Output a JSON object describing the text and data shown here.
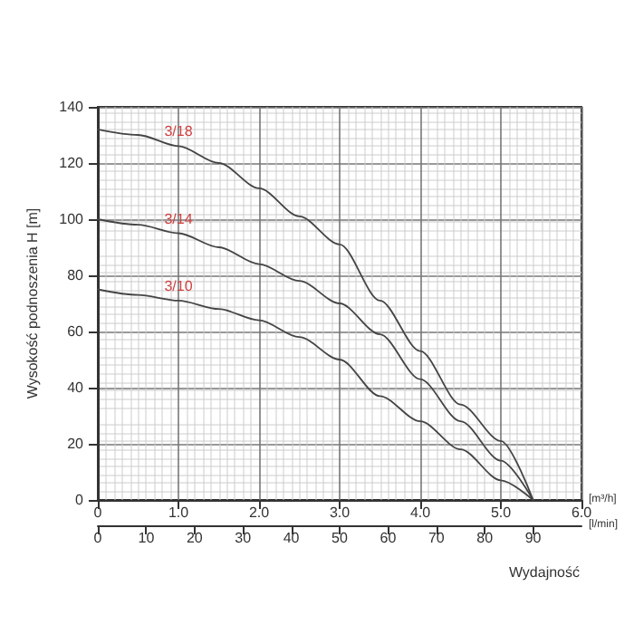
{
  "chart_data": {
    "type": "line",
    "xlabel": "[m³/h]",
    "x2label": "[l/min]",
    "ylabel": "Wysokość podnoszenia H [m]",
    "annotations": [
      "Wydajność"
    ],
    "x": [
      0,
      0.5,
      1,
      1.5,
      2,
      2.5,
      3,
      3.5,
      4,
      4.5,
      5,
      5.4
    ],
    "series": [
      {
        "name": "3/18",
        "color": "#444444",
        "values": [
          132,
          130,
          126,
          120,
          111,
          101,
          91,
          71,
          53,
          34,
          21,
          0
        ]
      },
      {
        "name": "3/14",
        "color": "#444444",
        "values": [
          100,
          98,
          95,
          90,
          84,
          78,
          70,
          59,
          43,
          28,
          14,
          0
        ]
      },
      {
        "name": "3/10",
        "color": "#444444",
        "values": [
          75,
          73,
          71,
          68,
          64,
          58,
          50,
          37,
          28,
          18,
          7,
          0
        ]
      }
    ],
    "xlim": [
      0,
      6
    ],
    "xticks": [
      0,
      {
        "value": 1,
        "label": "1.0"
      },
      {
        "value": 2,
        "label": "2.0"
      },
      {
        "value": 3,
        "label": "3.0"
      },
      {
        "value": 4,
        "label": "4.0"
      },
      {
        "value": 5,
        "label": "5.0"
      },
      {
        "value": 6,
        "label": "6.0"
      }
    ],
    "x2lim": [
      0,
      100
    ],
    "x2ticks": [
      0,
      10,
      20,
      30,
      40,
      50,
      60,
      70,
      80,
      90
    ],
    "ylim": [
      0,
      140
    ],
    "yticks": [
      0,
      20,
      40,
      60,
      80,
      100,
      120,
      140
    ],
    "grid": true,
    "marker": "none",
    "line_style": "solid",
    "legend": false
  }
}
